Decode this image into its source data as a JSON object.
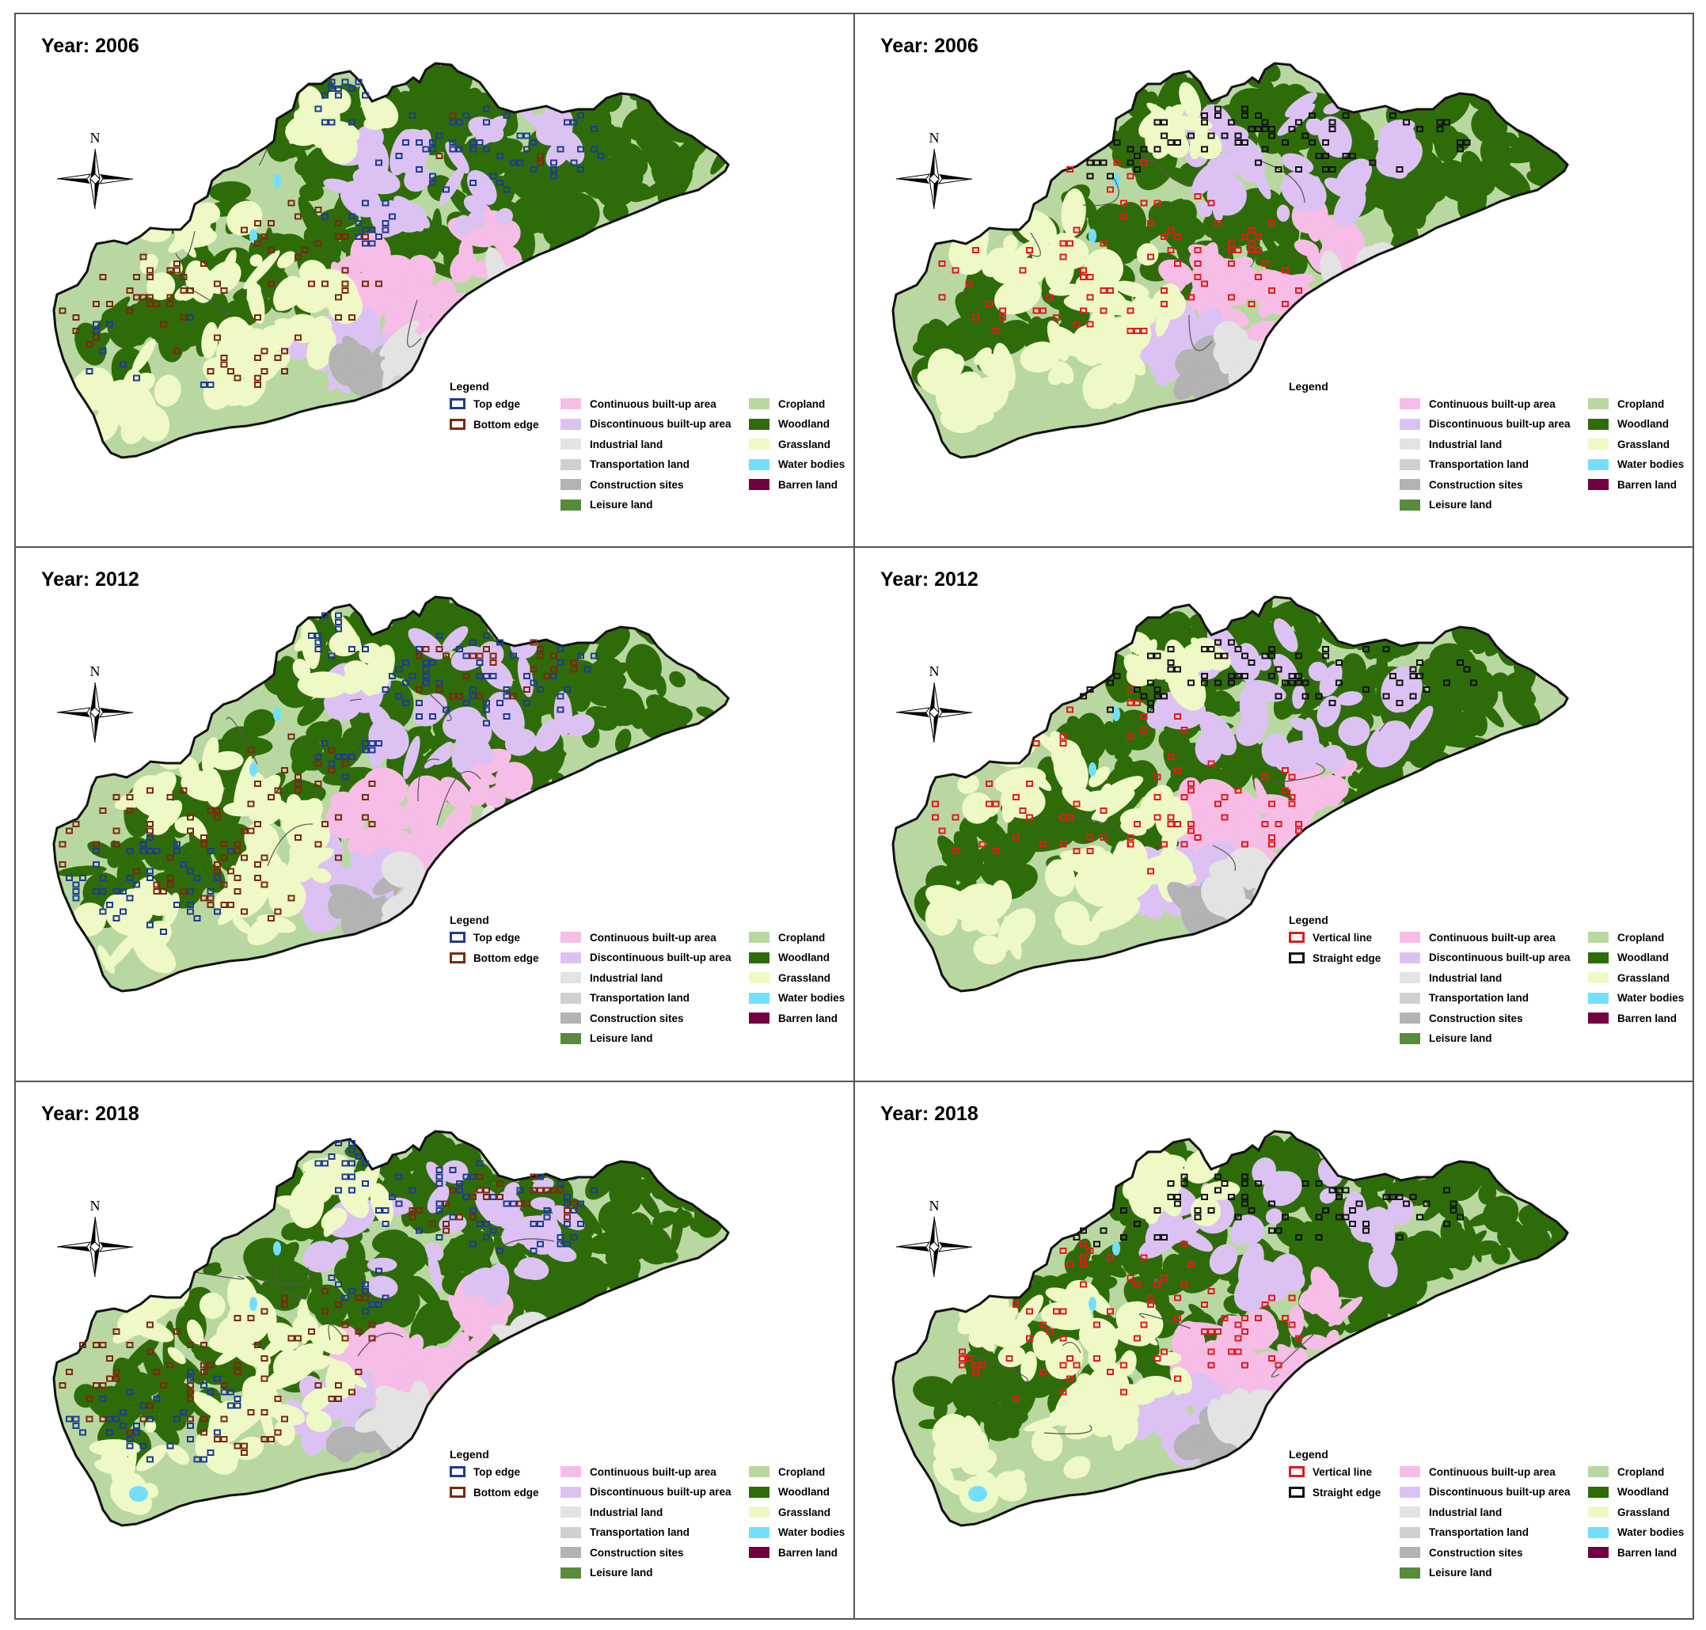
{
  "colors": {
    "cropland": "#b9d8a1",
    "woodland": "#2e6c09",
    "grassland": "#eef9c6",
    "water": "#73dfff",
    "barren": "#730040",
    "leisure": "#588b3b",
    "continuous": "#f6bde6",
    "discontinuous": "#dcc2f3",
    "industrial": "#e3e3e3",
    "transport": "#d0d0d0",
    "construction": "#b3b3b3",
    "top_edge": "#1f3c8f",
    "bottom_edge": "#7a2a0f",
    "vertical_line": "#e31a1c",
    "straight_edge": "#111111",
    "border": "#111111"
  },
  "panels": [
    {
      "year_label": "Year: 2006",
      "type": "edge",
      "legend_title": "Legend",
      "marks": [
        "Top edge",
        "Bottom edge"
      ]
    },
    {
      "year_label": "Year: 2006",
      "type": "line",
      "legend_title": "Legend",
      "marks": []
    },
    {
      "year_label": "Year: 2012",
      "type": "edge",
      "legend_title": "Legend",
      "marks": [
        "Top edge",
        "Bottom edge"
      ]
    },
    {
      "year_label": "Year: 2012",
      "type": "line",
      "legend_title": "Legend",
      "marks": [
        "Vertical line",
        "Straight edge"
      ]
    },
    {
      "year_label": "Year: 2018",
      "type": "edge",
      "legend_title": "Legend",
      "marks": [
        "Top edge",
        "Bottom edge"
      ]
    },
    {
      "year_label": "Year: 2018",
      "type": "line",
      "legend_title": "Legend",
      "marks": [
        "Vertical line",
        "Straight edge"
      ]
    }
  ],
  "landuse_classes": [
    {
      "label": "Continuous built-up area",
      "color": "#f6bde6"
    },
    {
      "label": "Discontinuous built-up area",
      "color": "#dcc2f3"
    },
    {
      "label": "Industrial land",
      "color": "#e3e3e3"
    },
    {
      "label": "Transportation land",
      "color": "#d0d0d0"
    },
    {
      "label": "Construction sites",
      "color": "#b3b3b3"
    },
    {
      "label": "Leisure land",
      "color": "#588b3b"
    },
    {
      "label": "Cropland",
      "color": "#b9d8a1"
    },
    {
      "label": "Woodland",
      "color": "#2e6c09"
    },
    {
      "label": "Grassland",
      "color": "#eef9c6"
    },
    {
      "label": "Water bodies",
      "color": "#73dfff"
    },
    {
      "label": "Barren land",
      "color": "#730040"
    }
  ],
  "compass_label": "N"
}
